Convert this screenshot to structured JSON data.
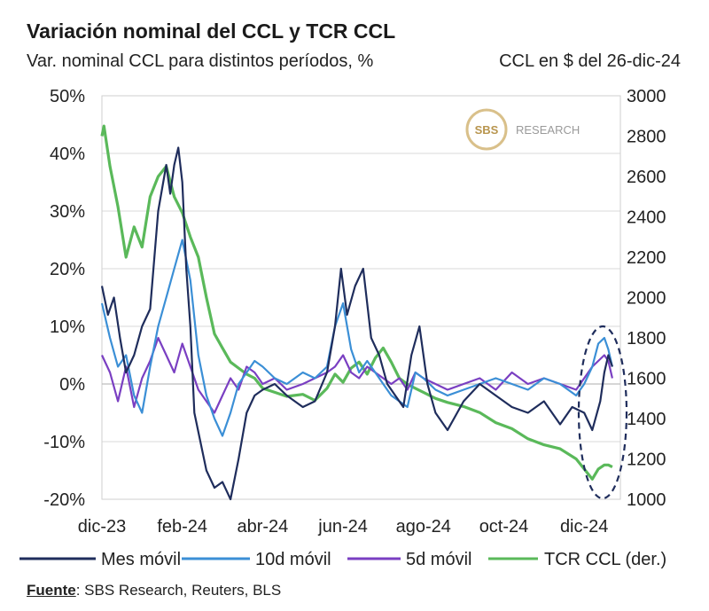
{
  "header": {
    "title": "Variación nominal del CCL y TCR CCL",
    "subtitle_left": "Var. nominal CCL para distintos períodos, %",
    "subtitle_right": "CCL en $ del 26-dic-24"
  },
  "source": {
    "label": "Fuente",
    "text": ": SBS Research, Reuters, BLS"
  },
  "watermark": {
    "logo_text": "SBS",
    "text": "RESEARCH"
  },
  "colors": {
    "mes": "#1f2d5c",
    "d10": "#3b8fd6",
    "d5": "#7a3fc2",
    "tcr": "#5ab95a",
    "grid": "#d9d9d9",
    "gold": "#c9a25a"
  },
  "chart_data": {
    "type": "line",
    "title": "Variación nominal del CCL y TCR CCL",
    "ylabel_left": "Var. nominal CCL para distintos períodos, %",
    "ylabel_right": "CCL en $ del 26-dic-24",
    "x_tick_labels": [
      "dic-23",
      "feb-24",
      "abr-24",
      "jun-24",
      "ago-24",
      "oct-24",
      "dic-24"
    ],
    "x_tick_positions": [
      0,
      2,
      4,
      6,
      8,
      10,
      12
    ],
    "xlim": [
      0,
      12.9
    ],
    "y_left_ticks": [
      "-20%",
      "-10%",
      "0%",
      "10%",
      "20%",
      "30%",
      "40%",
      "50%"
    ],
    "y_left_values": [
      -20,
      -10,
      0,
      10,
      20,
      30,
      40,
      50
    ],
    "ylim_left": [
      -20,
      50
    ],
    "y_right_ticks": [
      "1000",
      "1200",
      "1400",
      "1600",
      "1800",
      "2000",
      "2200",
      "2400",
      "2600",
      "2800",
      "3000"
    ],
    "y_right_values": [
      1000,
      1200,
      1400,
      1600,
      1800,
      2000,
      2200,
      2400,
      2600,
      2800,
      3000
    ],
    "ylim_right": [
      1000,
      3000
    ],
    "series": [
      {
        "key": "mes",
        "name": "Mes móvil",
        "axis": "left",
        "x": [
          0,
          0.15,
          0.3,
          0.45,
          0.6,
          0.8,
          1.0,
          1.2,
          1.4,
          1.6,
          1.7,
          1.8,
          1.9,
          2.0,
          2.1,
          2.2,
          2.3,
          2.45,
          2.6,
          2.8,
          3.0,
          3.2,
          3.4,
          3.6,
          3.8,
          4.0,
          4.3,
          4.6,
          5.0,
          5.3,
          5.6,
          5.8,
          5.95,
          6.1,
          6.3,
          6.5,
          6.7,
          6.9,
          7.1,
          7.3,
          7.5,
          7.7,
          7.9,
          8.1,
          8.3,
          8.6,
          9.0,
          9.4,
          9.8,
          10.2,
          10.6,
          11.0,
          11.4,
          11.7,
          12.0,
          12.2,
          12.4,
          12.5,
          12.6,
          12.7
        ],
        "values": [
          17,
          12,
          15,
          8,
          2,
          5,
          10,
          13,
          30,
          38,
          33,
          38,
          41,
          35,
          20,
          10,
          -5,
          -10,
          -15,
          -18,
          -17,
          -20,
          -13,
          -5,
          -2,
          -1,
          0,
          -2,
          -4,
          -3,
          2,
          10,
          20,
          12,
          17,
          20,
          8,
          5,
          0,
          -2,
          -4,
          5,
          10,
          0,
          -5,
          -8,
          -3,
          0,
          -2,
          -4,
          -5,
          -3,
          -7,
          -4,
          -5,
          -8,
          -3,
          2,
          5,
          3
        ]
      },
      {
        "key": "d10",
        "name": "10d móvil",
        "axis": "left",
        "x": [
          0,
          0.2,
          0.4,
          0.6,
          0.8,
          1.0,
          1.2,
          1.4,
          1.6,
          1.8,
          2.0,
          2.2,
          2.4,
          2.6,
          2.8,
          3.0,
          3.2,
          3.4,
          3.6,
          3.8,
          4.0,
          4.3,
          4.6,
          5.0,
          5.3,
          5.6,
          5.8,
          6.0,
          6.2,
          6.4,
          6.6,
          6.8,
          7.0,
          7.2,
          7.4,
          7.6,
          7.8,
          8.0,
          8.3,
          8.6,
          9.0,
          9.4,
          9.8,
          10.2,
          10.6,
          11.0,
          11.4,
          11.8,
          12.0,
          12.2,
          12.35,
          12.5,
          12.6,
          12.7
        ],
        "values": [
          14,
          8,
          3,
          5,
          -2,
          -5,
          3,
          10,
          15,
          20,
          25,
          18,
          5,
          -2,
          -6,
          -9,
          -5,
          0,
          2,
          4,
          3,
          1,
          0,
          2,
          1,
          3,
          10,
          14,
          6,
          2,
          4,
          2,
          0,
          -2,
          -3,
          -4,
          2,
          1,
          -1,
          -2,
          -1,
          0,
          1,
          0,
          -1,
          1,
          0,
          -2,
          0,
          3,
          7,
          8,
          6,
          3
        ]
      },
      {
        "key": "d5",
        "name": "5d móvil",
        "axis": "left",
        "x": [
          0,
          0.2,
          0.4,
          0.6,
          0.8,
          1.0,
          1.2,
          1.4,
          1.6,
          1.8,
          2.0,
          2.2,
          2.4,
          2.6,
          2.8,
          3.0,
          3.2,
          3.4,
          3.6,
          3.8,
          4.0,
          4.3,
          4.6,
          5.0,
          5.3,
          5.6,
          5.8,
          6.0,
          6.2,
          6.4,
          6.6,
          6.8,
          7.0,
          7.2,
          7.4,
          7.6,
          7.8,
          8.0,
          8.3,
          8.6,
          9.0,
          9.4,
          9.8,
          10.2,
          10.6,
          11.0,
          11.4,
          11.8,
          12.0,
          12.2,
          12.35,
          12.5,
          12.6,
          12.7
        ],
        "values": [
          5,
          2,
          -3,
          3,
          -4,
          1,
          4,
          8,
          5,
          2,
          7,
          3,
          -1,
          -3,
          -5,
          -2,
          1,
          -1,
          3,
          2,
          0,
          1,
          -1,
          0,
          1,
          2,
          3,
          5,
          2,
          1,
          3,
          2,
          1,
          0,
          1,
          -1,
          2,
          1,
          0,
          -1,
          0,
          1,
          -1,
          2,
          0,
          1,
          0,
          -1,
          1,
          3,
          4,
          5,
          4,
          1
        ]
      },
      {
        "key": "tcr",
        "name": "TCR CCL (der.)",
        "axis": "right",
        "x": [
          0,
          0.05,
          0.2,
          0.4,
          0.6,
          0.8,
          1.0,
          1.2,
          1.4,
          1.6,
          1.8,
          2.0,
          2.2,
          2.4,
          2.6,
          2.8,
          3.0,
          3.2,
          3.4,
          3.6,
          3.8,
          4.0,
          4.3,
          4.6,
          5.0,
          5.3,
          5.6,
          5.8,
          6.0,
          6.2,
          6.4,
          6.6,
          6.8,
          7.0,
          7.2,
          7.4,
          7.6,
          7.8,
          8.0,
          8.3,
          8.6,
          9.0,
          9.4,
          9.8,
          10.2,
          10.6,
          11.0,
          11.4,
          11.8,
          12.0,
          12.2,
          12.35,
          12.5,
          12.6,
          12.7
        ],
        "values": [
          2800,
          2850,
          2650,
          2450,
          2200,
          2350,
          2250,
          2500,
          2600,
          2650,
          2500,
          2420,
          2300,
          2200,
          2000,
          1820,
          1750,
          1680,
          1650,
          1620,
          1600,
          1550,
          1530,
          1510,
          1520,
          1490,
          1550,
          1620,
          1580,
          1650,
          1680,
          1620,
          1700,
          1750,
          1680,
          1600,
          1570,
          1550,
          1530,
          1500,
          1480,
          1460,
          1430,
          1380,
          1350,
          1300,
          1270,
          1250,
          1200,
          1150,
          1100,
          1150,
          1170,
          1170,
          1160
        ]
      }
    ],
    "annotation": "dashed ellipse highlighting dic-24 jump"
  }
}
